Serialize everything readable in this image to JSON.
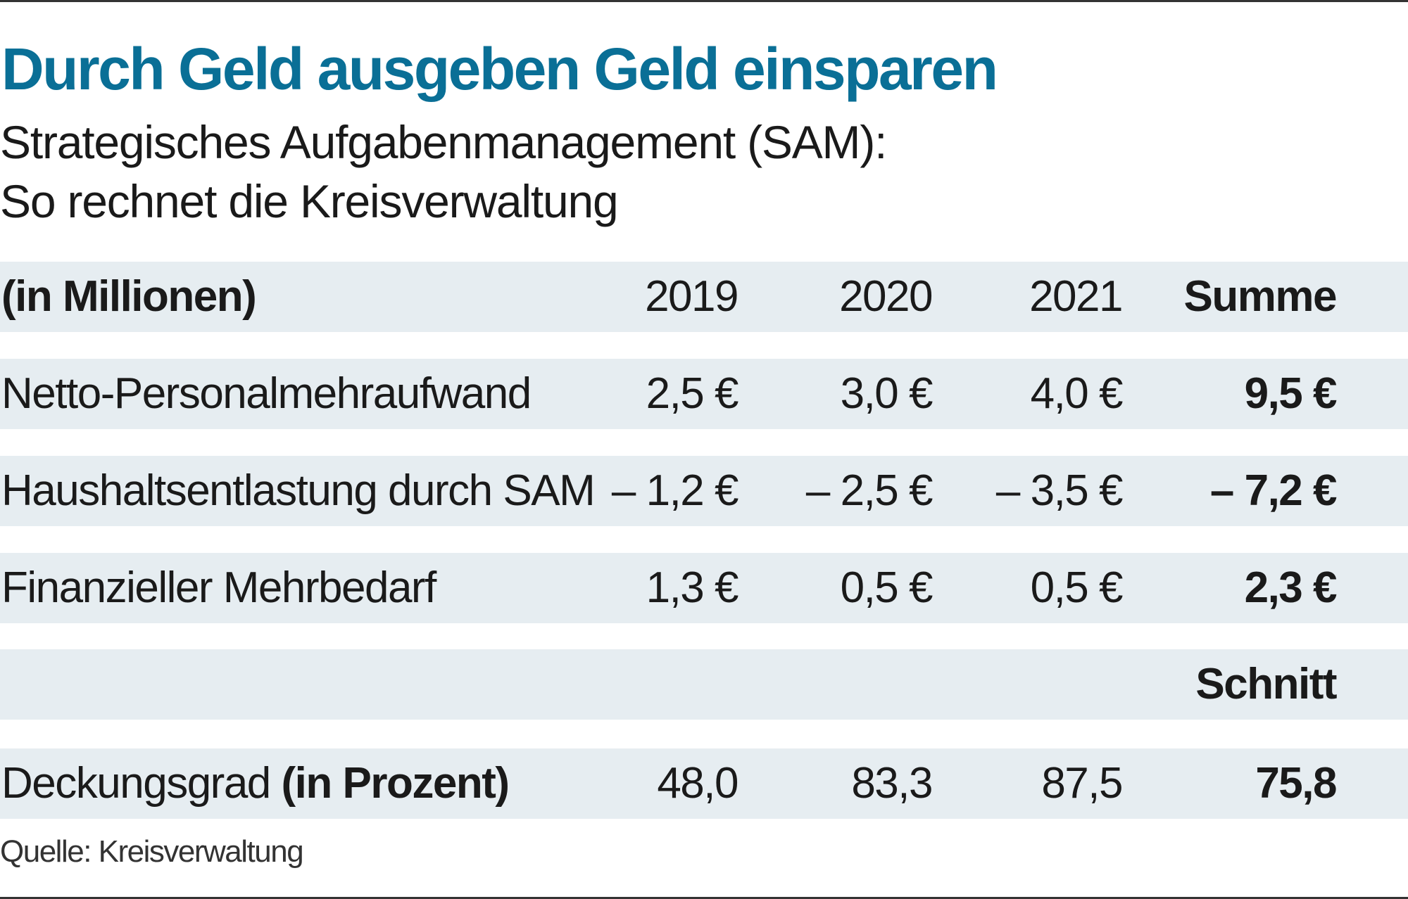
{
  "title": "Durch Geld ausgeben Geld einsparen",
  "subtitle": [
    "Strategisches Aufgabenmanagement (SAM):",
    "So rechnet die Kreisverwaltung"
  ],
  "accent_color": "#0a6f96",
  "band_color": "#e6edf1",
  "table": {
    "header": {
      "label": "(in Millionen)",
      "cols": [
        "2019",
        "2020",
        "2021",
        "Summe"
      ]
    },
    "rows": [
      {
        "label": "Netto-Personalmehraufwand",
        "values": [
          "2,5 €",
          "3,0 €",
          "4,0 €",
          "9,5 €"
        ]
      },
      {
        "label": "Haushaltsentlastung durch SAM",
        "values": [
          "– 1,2 €",
          "– 2,5 €",
          "– 3,5 €",
          "– 7,2 €"
        ]
      },
      {
        "label": "Finanzieller Mehrbedarf",
        "values": [
          "1,3 €",
          "0,5 €",
          "0,5 €",
          "2,3 €"
        ]
      }
    ],
    "avg_header": "Schnitt",
    "coverage": {
      "label": "Deckungsgrad",
      "label_suffix": "(in Prozent)",
      "values": [
        "48,0",
        "83,3",
        "87,5",
        "75,8"
      ]
    }
  },
  "source": "Quelle: Kreisverwaltung"
}
